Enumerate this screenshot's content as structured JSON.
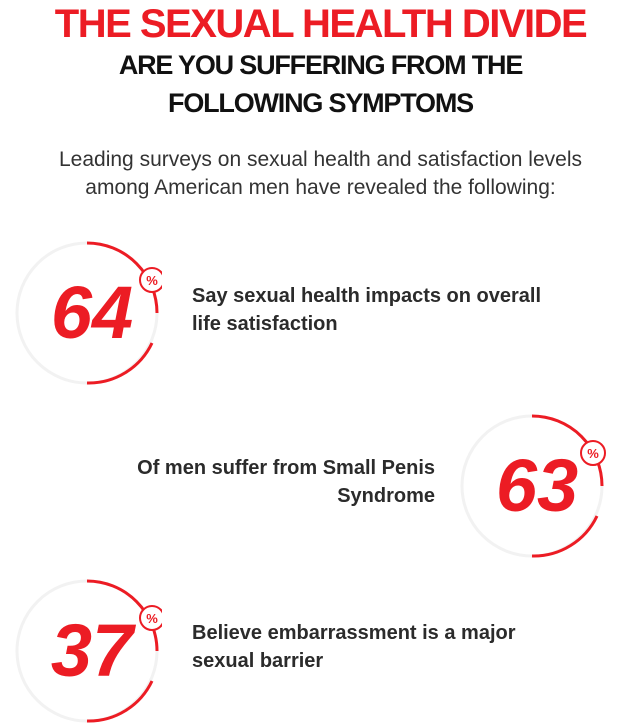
{
  "header": {
    "title": "THE SEXUAL HEALTH DIVIDE",
    "subtitle_line1": "ARE YOU SUFFERING FROM THE",
    "subtitle_line2": "FOLLOWING SYMPTOMS"
  },
  "intro": {
    "line1": "Leading surveys on sexual health and satisfaction levels",
    "line2": "among American men have revealed the following:"
  },
  "colors": {
    "accent": "#ec1c24",
    "heading": "#111111",
    "body": "#333333"
  },
  "percent_symbol": "%",
  "stats": [
    {
      "value": "64",
      "line1": "Say sexual health impacts on overall",
      "line2": "life satisfaction"
    },
    {
      "value": "63",
      "line1": "Of men suffer from Small Penis",
      "line2": "Syndrome"
    },
    {
      "value": "37",
      "line1": "Believe embarrassment is a major",
      "line2": "sexual barrier"
    }
  ]
}
